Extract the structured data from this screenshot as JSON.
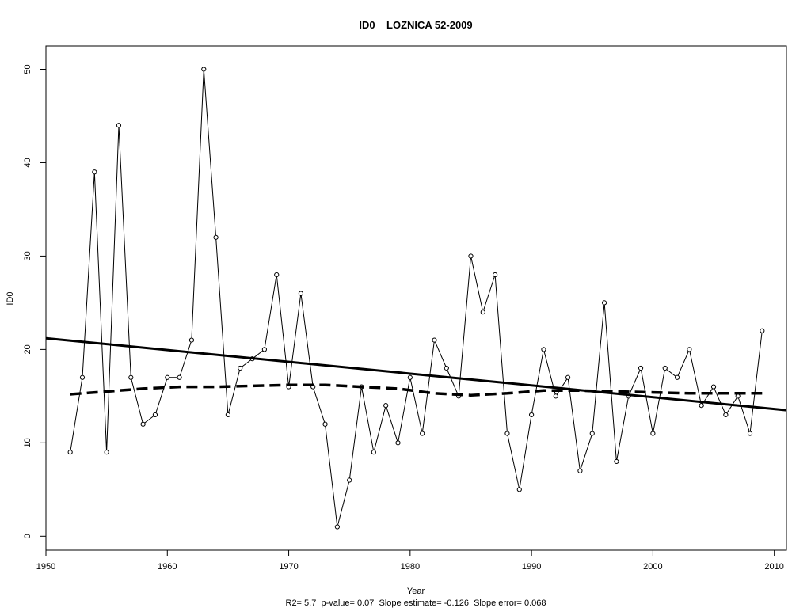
{
  "chart_data": {
    "type": "line",
    "title": "ID0    LOZNICA 52-2009",
    "xlabel": "Year",
    "ylabel": "ID0",
    "footer": "R2= 5.7  p-value= 0.07  Slope estimate= -0.126  Slope error= 0.068",
    "xlim": [
      1950,
      2011
    ],
    "ylim": [
      -1.5,
      52.5
    ],
    "x_ticks": [
      1950,
      1960,
      1970,
      1980,
      1990,
      2000,
      2010
    ],
    "y_ticks": [
      0,
      10,
      20,
      30,
      40,
      50
    ],
    "grid": false,
    "series": [
      {
        "style": "line-with-circle-markers",
        "color": "#000000",
        "x": [
          1952,
          1953,
          1954,
          1955,
          1956,
          1957,
          1958,
          1959,
          1960,
          1961,
          1962,
          1963,
          1964,
          1965,
          1966,
          1967,
          1968,
          1969,
          1970,
          1971,
          1972,
          1973,
          1974,
          1975,
          1976,
          1977,
          1978,
          1979,
          1980,
          1981,
          1982,
          1983,
          1984,
          1985,
          1986,
          1987,
          1988,
          1989,
          1990,
          1991,
          1992,
          1993,
          1994,
          1995,
          1996,
          1997,
          1998,
          1999,
          2000,
          2001,
          2002,
          2003,
          2004,
          2005,
          2006,
          2007,
          2008,
          2009
        ],
        "values": [
          9,
          17,
          39,
          9,
          44,
          17,
          12,
          13,
          17,
          17,
          21,
          50,
          32,
          13,
          18,
          19,
          20,
          28,
          16,
          26,
          16,
          12,
          1,
          6,
          16,
          9,
          14,
          10,
          17,
          11,
          21,
          18,
          15,
          30,
          24,
          28,
          11,
          5,
          13,
          20,
          15,
          17,
          7,
          11,
          25,
          8,
          15,
          18,
          11,
          18,
          17,
          20,
          14,
          16,
          13,
          15,
          11,
          22
        ]
      },
      {
        "style": "thick-solid-linear-trend",
        "color": "#000000",
        "x": [
          1950,
          2011
        ],
        "values": [
          21.2,
          13.5
        ]
      },
      {
        "style": "thick-dashed-smooth-trend",
        "color": "#000000",
        "x": [
          1952,
          1955,
          1958,
          1961,
          1964,
          1967,
          1970,
          1973,
          1976,
          1979,
          1982,
          1985,
          1988,
          1991,
          1994,
          1997,
          2000,
          2003,
          2006,
          2009
        ],
        "values": [
          15.2,
          15.5,
          15.8,
          16.0,
          16.0,
          16.1,
          16.2,
          16.2,
          16.0,
          15.8,
          15.3,
          15.1,
          15.3,
          15.6,
          15.6,
          15.5,
          15.4,
          15.3,
          15.3,
          15.3
        ]
      }
    ]
  }
}
